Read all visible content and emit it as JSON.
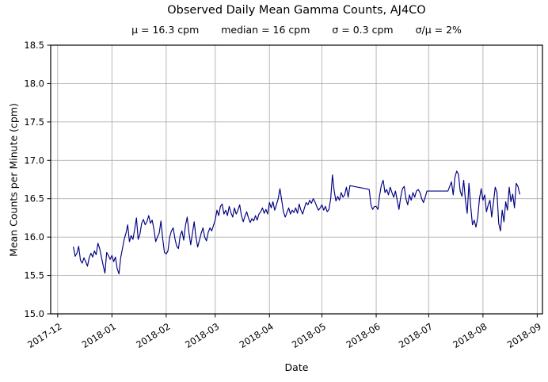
{
  "chart_data": {
    "type": "line",
    "title": "Observed Daily Mean Gamma Counts, AJ4CO",
    "stats_segments": [
      "μ = 16.3 cpm",
      "median = 16 cpm",
      "σ = 0.3 cpm",
      "σ/μ = 2%"
    ],
    "xlabel": "Date",
    "ylabel": "Mean Counts per Minute (cpm)",
    "grid": true,
    "legend": "none",
    "line_color": "#000080",
    "grid_color": "#b0b0b0",
    "axis_color": "#000000",
    "background_color": "#ffffff",
    "ylim": [
      15.0,
      18.5
    ],
    "ytick_labels": [
      "15.0",
      "15.5",
      "16.0",
      "16.5",
      "17.0",
      "17.5",
      "18.0",
      "18.5"
    ],
    "xlim_days": [
      -4,
      277
    ],
    "xticks": [
      {
        "label": "2017-12",
        "day": 0
      },
      {
        "label": "2018-01",
        "day": 31
      },
      {
        "label": "2018-02",
        "day": 62
      },
      {
        "label": "2018-03",
        "day": 90
      },
      {
        "label": "2018-04",
        "day": 121
      },
      {
        "label": "2018-05",
        "day": 151
      },
      {
        "label": "2018-06",
        "day": 182
      },
      {
        "label": "2018-07",
        "day": 212
      },
      {
        "label": "2018-08",
        "day": 243
      },
      {
        "label": "2018-09",
        "day": 274
      }
    ],
    "series": [
      {
        "name": "daily mean gamma counts",
        "start_date": "2017-12-10",
        "start_day": 9,
        "step_days": 1,
        "values": [
          15.87,
          15.75,
          15.79,
          15.88,
          15.7,
          15.66,
          15.73,
          15.68,
          15.62,
          15.73,
          15.79,
          15.74,
          15.82,
          15.77,
          15.92,
          15.85,
          15.74,
          15.63,
          15.53,
          15.8,
          15.76,
          15.71,
          15.76,
          15.68,
          15.74,
          15.59,
          15.52,
          15.73,
          15.85,
          15.97,
          16.05,
          16.16,
          15.94,
          16.02,
          15.97,
          16.1,
          16.25,
          15.97,
          16.04,
          16.18,
          16.23,
          16.16,
          16.2,
          16.28,
          16.18,
          16.22,
          16.1,
          15.94,
          16.0,
          16.05,
          16.21,
          15.98,
          15.8,
          15.78,
          15.82,
          16.0,
          16.08,
          16.12,
          15.98,
          15.88,
          15.85,
          16.02,
          16.08,
          15.96,
          16.15,
          16.26,
          16.06,
          15.9,
          16.05,
          16.2,
          16.0,
          15.87,
          15.96,
          16.05,
          16.12,
          16.0,
          15.95,
          16.06,
          16.12,
          16.08,
          16.15,
          16.22,
          16.35,
          16.28,
          16.4,
          16.43,
          16.3,
          16.35,
          16.28,
          16.4,
          16.32,
          16.26,
          16.38,
          16.3,
          16.35,
          16.42,
          16.28,
          16.2,
          16.27,
          16.33,
          16.25,
          16.19,
          16.24,
          16.21,
          16.28,
          16.22,
          16.3,
          16.33,
          16.38,
          16.31,
          16.36,
          16.3,
          16.45,
          16.38,
          16.46,
          16.35,
          16.42,
          16.5,
          16.63,
          16.48,
          16.33,
          16.26,
          16.32,
          16.38,
          16.3,
          16.35,
          16.32,
          16.38,
          16.31,
          16.43,
          16.35,
          16.3,
          16.38,
          16.45,
          16.42,
          16.48,
          16.44,
          16.5,
          16.46,
          16.4,
          16.35,
          16.38,
          16.42,
          16.35,
          16.4,
          16.33,
          16.36,
          16.5,
          16.81,
          16.6,
          16.47,
          16.53,
          16.48,
          16.58,
          16.52,
          16.55,
          16.65,
          16.52,
          16.67,
          16.666,
          16.661,
          16.657,
          16.652,
          16.648,
          16.643,
          16.639,
          16.634,
          16.63,
          16.625,
          16.62,
          16.42,
          16.36,
          16.4,
          16.4,
          16.36,
          16.55,
          16.68,
          16.74,
          16.58,
          16.62,
          16.55,
          16.65,
          16.58,
          16.52,
          16.6,
          16.48,
          16.36,
          16.52,
          16.63,
          16.66,
          16.5,
          16.42,
          16.55,
          16.48,
          16.58,
          16.52,
          16.6,
          16.62,
          16.58,
          16.5,
          16.45,
          16.52,
          16.6,
          16.6,
          16.6,
          16.6,
          16.6,
          16.6,
          16.6,
          16.6,
          16.6,
          16.6,
          16.6,
          16.6,
          16.6,
          16.66,
          16.72,
          16.55,
          16.78,
          16.86,
          16.82,
          16.6,
          16.53,
          16.74,
          16.48,
          16.31,
          16.7,
          16.4,
          16.16,
          16.22,
          16.13,
          16.25,
          16.5,
          16.63,
          16.48,
          16.55,
          16.33,
          16.42,
          16.48,
          16.26,
          16.45,
          16.65,
          16.58,
          16.18,
          16.08,
          16.35,
          16.2,
          16.46,
          16.35,
          16.65,
          16.46,
          16.56,
          16.38,
          16.7,
          16.66,
          16.56
        ]
      }
    ]
  }
}
